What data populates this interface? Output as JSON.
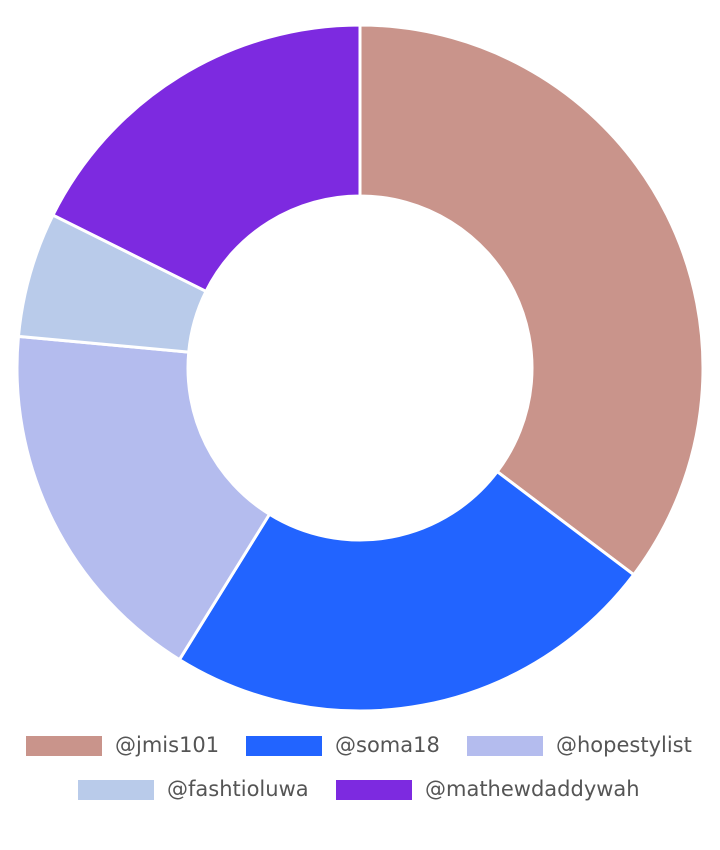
{
  "chart_data": {
    "type": "doughnut",
    "categories": [
      "@jmis101",
      "@soma18",
      "@hopestylist",
      "@fashtioluwa",
      "@mathewdaddywah"
    ],
    "values": [
      6,
      4,
      3,
      1,
      3
    ],
    "colors": [
      "#c9948b",
      "#2264ff",
      "#b4bcee",
      "#b9cbea",
      "#7d2ae0"
    ],
    "legend": "bottom"
  }
}
